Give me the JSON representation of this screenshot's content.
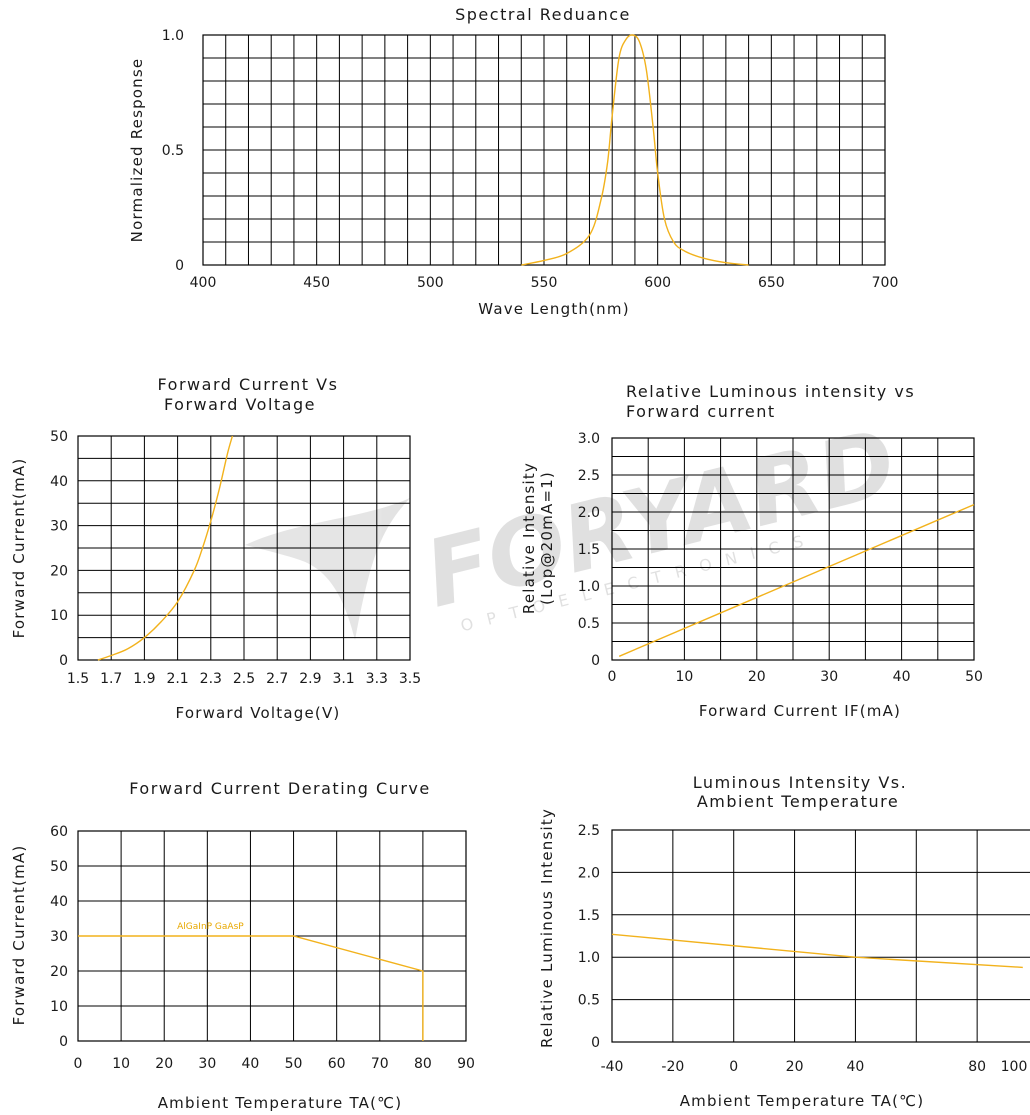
{
  "watermark": {
    "text": "FORYARD",
    "subtext": "OPTOELECTRONICS"
  },
  "curve_color": "#f2b21c",
  "grid_color": "#000000",
  "chart_data": [
    {
      "id": "spectral",
      "type": "line",
      "title": "Spectral   Reduance",
      "xlabel": "Wave Length(nm)",
      "ylabel": "Normalized   Response",
      "xlim": [
        400,
        700
      ],
      "ylim": [
        0,
        1.0
      ],
      "xticks": [
        "400",
        "450",
        "500",
        "550",
        "600",
        "650",
        "700"
      ],
      "yticks": [
        {
          "v": 0,
          "t": "0"
        },
        {
          "v": 0.5,
          "t": "0.5"
        },
        {
          "v": 1.0,
          "t": "1.0"
        }
      ],
      "grid": true,
      "series": [
        {
          "points": [
            [
              540,
              0.0
            ],
            [
              550,
              0.02
            ],
            [
              560,
              0.05
            ],
            [
              570,
              0.13
            ],
            [
              575,
              0.28
            ],
            [
              578,
              0.45
            ],
            [
              580,
              0.65
            ],
            [
              583,
              0.9
            ],
            [
              586,
              0.98
            ],
            [
              589,
              1.0
            ],
            [
              592,
              0.97
            ],
            [
              595,
              0.85
            ],
            [
              598,
              0.6
            ],
            [
              600,
              0.4
            ],
            [
              603,
              0.2
            ],
            [
              607,
              0.1
            ],
            [
              612,
              0.06
            ],
            [
              620,
              0.03
            ],
            [
              630,
              0.01
            ],
            [
              640,
              0.0
            ]
          ]
        }
      ]
    },
    {
      "id": "fcfv",
      "type": "line",
      "title_lines": [
        "Forward Current Vs",
        "Forward Voltage"
      ],
      "xlabel": "Forward Voltage(V)",
      "ylabel": "Forward Current(mA)",
      "xlim": [
        1.5,
        3.5
      ],
      "ylim": [
        0,
        50
      ],
      "xticks": [
        "1.5",
        "1.7",
        "1.9",
        "2.1",
        "2.3",
        "2.5",
        "2.7",
        "2.9",
        "3.1",
        "3.3",
        "3.5"
      ],
      "yticks": [
        "0",
        "10",
        "20",
        "30",
        "40",
        "50"
      ],
      "grid": true,
      "series": [
        {
          "points": [
            [
              1.62,
              0
            ],
            [
              1.7,
              1
            ],
            [
              1.8,
              2.5
            ],
            [
              1.9,
              5
            ],
            [
              2.0,
              8.5
            ],
            [
              2.1,
              13
            ],
            [
              2.2,
              20
            ],
            [
              2.25,
              25
            ],
            [
              2.3,
              31
            ],
            [
              2.35,
              38
            ],
            [
              2.4,
              46
            ],
            [
              2.43,
              50
            ]
          ]
        }
      ]
    },
    {
      "id": "rlifc",
      "type": "line",
      "title_lines": [
        "Relative Luminous intensity vs",
        "Forward current"
      ],
      "xlabel": "Forward Current IF(mA)",
      "ylabel_lines": [
        "Relative Intensity",
        "(Lop@20mA=1)"
      ],
      "xlim": [
        0,
        50
      ],
      "ylim": [
        0,
        3.0
      ],
      "xticks": [
        {
          "v": 0,
          "t": "0"
        },
        {
          "v": 10,
          "t": "10"
        },
        {
          "v": 20,
          "t": "20"
        },
        {
          "v": 30,
          "t": "30"
        },
        {
          "v": 40,
          "t": "40"
        },
        {
          "v": 50,
          "t": "50"
        }
      ],
      "yticks": [
        "0",
        "0.5",
        "1.0",
        "1.5",
        "2.0",
        "2.5",
        "3.0"
      ],
      "grid": true,
      "series": [
        {
          "points": [
            [
              1,
              0.05
            ],
            [
              50,
              2.1
            ]
          ]
        }
      ]
    },
    {
      "id": "derating",
      "type": "line",
      "title": "Forward Current Derating Curve",
      "xlabel": "Ambient Temperature TA(℃)",
      "ylabel": "Forward Current(mA)",
      "xlim": [
        0,
        90
      ],
      "ylim": [
        0,
        60
      ],
      "xticks": [
        "0",
        "10",
        "20",
        "30",
        "40",
        "50",
        "60",
        "70",
        "80",
        "90"
      ],
      "yticks": [
        "0",
        "10",
        "20",
        "30",
        "40",
        "50",
        "60"
      ],
      "grid": true,
      "annotation": {
        "text": "AlGaInP   GaAsP",
        "x": 23,
        "y": 32
      },
      "series": [
        {
          "points": [
            [
              0,
              30
            ],
            [
              50,
              30
            ],
            [
              80,
              20
            ],
            [
              80,
              0
            ]
          ]
        }
      ]
    },
    {
      "id": "litemp",
      "type": "line",
      "title_lines": [
        "Luminous Intensity Vs.",
        "Ambient Temperature"
      ],
      "xlabel": "Ambient Temperature TA(℃)",
      "ylabel": "Relative Luminous Intensity",
      "xlim": [
        -40,
        100
      ],
      "ylim": [
        0,
        2.5
      ],
      "xticks": [
        {
          "v": -40,
          "t": "-40"
        },
        {
          "v": -20,
          "t": "-20"
        },
        {
          "v": 0,
          "t": "0"
        },
        {
          "v": 20,
          "t": "20"
        },
        {
          "v": 40,
          "t": "40"
        },
        {
          "v": 80,
          "t": "80"
        },
        {
          "v": 100,
          "t": "100"
        }
      ],
      "yticks": [
        "0",
        "0.5",
        "1.0",
        "1.5",
        "2.0",
        "2.5"
      ],
      "grid": true,
      "series": [
        {
          "points": [
            [
              -40,
              1.27
            ],
            [
              40,
              1.0
            ],
            [
              95,
              0.88
            ]
          ]
        }
      ]
    }
  ]
}
